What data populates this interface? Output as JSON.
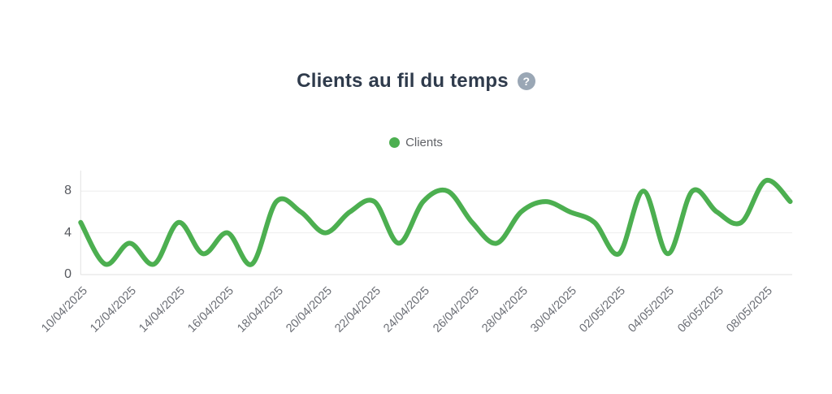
{
  "title": {
    "text": "Clients au fil du temps",
    "help_icon_glyph": "?"
  },
  "legend": {
    "label": "Clients",
    "marker_color": "#4caf50"
  },
  "colors": {
    "line": "#4caf50",
    "title_text": "#2f3b4c",
    "axis_labels": "#6b6e75",
    "gridline": "#eeeeee",
    "axis_line": "#e2e2e2",
    "help_icon_bg": "#9aa7b5"
  },
  "chart_data": {
    "type": "line",
    "title": "Clients au fil du temps",
    "line_style": "smooth",
    "grid": "horizontal-only",
    "legend_position": "top",
    "x_label_rotation": -45,
    "ylim": [
      0,
      10
    ],
    "y_ticks": [
      0,
      4,
      8
    ],
    "x": [
      "10/04/2025",
      "11/04/2025",
      "12/04/2025",
      "13/04/2025",
      "14/04/2025",
      "15/04/2025",
      "16/04/2025",
      "17/04/2025",
      "18/04/2025",
      "19/04/2025",
      "20/04/2025",
      "21/04/2025",
      "22/04/2025",
      "23/04/2025",
      "24/04/2025",
      "25/04/2025",
      "26/04/2025",
      "27/04/2025",
      "28/04/2025",
      "29/04/2025",
      "30/04/2025",
      "01/05/2025",
      "02/05/2025",
      "03/05/2025",
      "04/05/2025",
      "05/05/2025",
      "06/05/2025",
      "07/05/2025",
      "08/05/2025",
      "09/05/2025"
    ],
    "x_axis": {
      "label_every": 2,
      "tick_labels": [
        "10/04/2025",
        "12/04/2025",
        "14/04/2025",
        "16/04/2025",
        "18/04/2025",
        "20/04/2025",
        "22/04/2025",
        "24/04/2025",
        "26/04/2025",
        "28/04/2025",
        "30/04/2025",
        "02/05/2025",
        "04/05/2025",
        "06/05/2025",
        "08/05/2025"
      ]
    },
    "series": [
      {
        "name": "Clients",
        "color": "#4caf50",
        "values": [
          5,
          1,
          3,
          1,
          5,
          2,
          4,
          1,
          7,
          6,
          4,
          6,
          7,
          3,
          7,
          8,
          5,
          3,
          6,
          7,
          6,
          5,
          2,
          8,
          2,
          8,
          6,
          5,
          9,
          7
        ]
      }
    ]
  }
}
